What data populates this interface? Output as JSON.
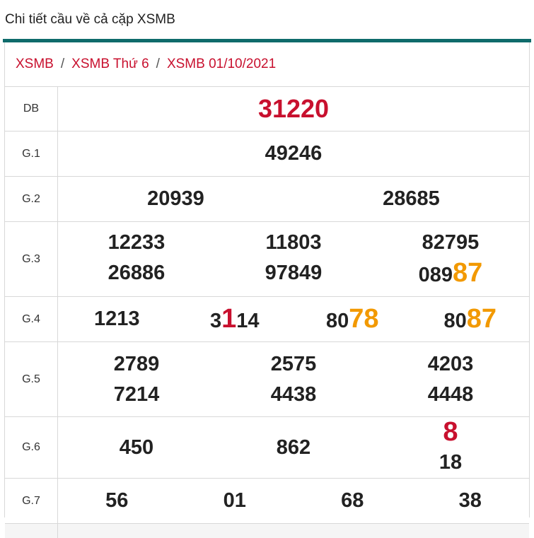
{
  "page_title": "Chi tiết cầu về cả cặp XSMB",
  "breadcrumb": [
    "XSMB",
    "XSMB Thứ 6",
    "XSMB 01/10/2021"
  ],
  "breadcrumb_sep": "/",
  "colors": {
    "accent": "#0e6b6b",
    "red": "#c8102e",
    "orange": "#f29900"
  },
  "prizes": {
    "db": {
      "label": "DB",
      "value": "31220"
    },
    "g1": {
      "label": "G.1",
      "value": "49246"
    },
    "g2": {
      "label": "G.2",
      "values": [
        "20939",
        "28685"
      ]
    },
    "g3": {
      "label": "G.3",
      "values": [
        "12233",
        "11803",
        "82795",
        "26886",
        "97849",
        "089",
        "87"
      ]
    },
    "g4": {
      "label": "G.4",
      "values": [
        "1213",
        "3",
        "1",
        "14",
        "80",
        "78",
        "80",
        "87"
      ]
    },
    "g5": {
      "label": "G.5",
      "values": [
        "2789",
        "2575",
        "4203",
        "7214",
        "4438",
        "4448"
      ]
    },
    "g6": {
      "label": "G.6",
      "values": [
        "450",
        "862",
        "8",
        "18"
      ]
    },
    "g7": {
      "label": "G.7",
      "values": [
        "56",
        "01",
        "68",
        "38"
      ]
    }
  }
}
